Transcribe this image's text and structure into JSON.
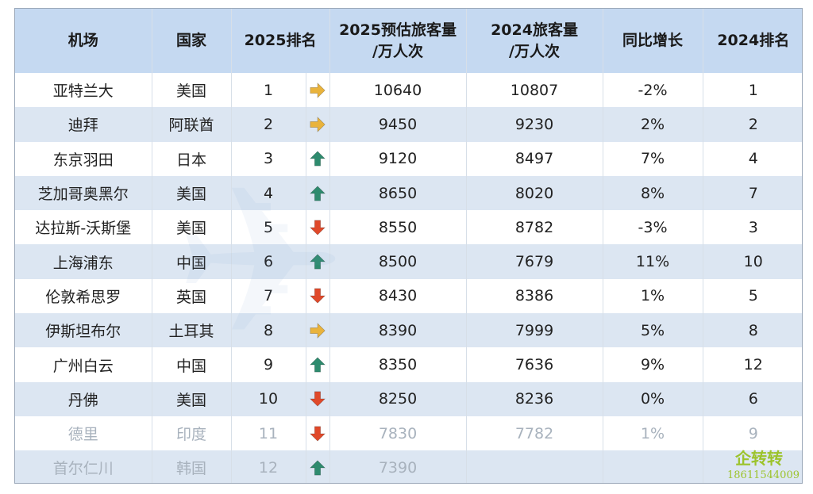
{
  "table": {
    "headers": [
      "机场",
      "国家",
      "2025排名",
      "2025预估旅客量\n/万人次",
      "2024旅客量\n/万人次",
      "同比增长",
      "2024排名"
    ],
    "rows": [
      {
        "airport": "亚特兰大",
        "country": "美国",
        "rank2025": "1",
        "trend": "flat",
        "est2025": "10640",
        "pax2024": "10807",
        "yoy": "-2%",
        "rank2024": "1"
      },
      {
        "airport": "迪拜",
        "country": "阿联酋",
        "rank2025": "2",
        "trend": "flat",
        "est2025": "9450",
        "pax2024": "9230",
        "yoy": "2%",
        "rank2024": "2"
      },
      {
        "airport": "东京羽田",
        "country": "日本",
        "rank2025": "3",
        "trend": "up",
        "est2025": "9120",
        "pax2024": "8497",
        "yoy": "7%",
        "rank2024": "4"
      },
      {
        "airport": "芝加哥奥黑尔",
        "country": "美国",
        "rank2025": "4",
        "trend": "up",
        "est2025": "8650",
        "pax2024": "8020",
        "yoy": "8%",
        "rank2024": "7"
      },
      {
        "airport": "达拉斯-沃斯堡",
        "country": "美国",
        "rank2025": "5",
        "trend": "down",
        "est2025": "8550",
        "pax2024": "8782",
        "yoy": "-3%",
        "rank2024": "3"
      },
      {
        "airport": "上海浦东",
        "country": "中国",
        "rank2025": "6",
        "trend": "up",
        "est2025": "8500",
        "pax2024": "7679",
        "yoy": "11%",
        "rank2024": "10"
      },
      {
        "airport": "伦敦希思罗",
        "country": "英国",
        "rank2025": "7",
        "trend": "down",
        "est2025": "8430",
        "pax2024": "8386",
        "yoy": "1%",
        "rank2024": "5"
      },
      {
        "airport": "伊斯坦布尔",
        "country": "土耳其",
        "rank2025": "8",
        "trend": "flat",
        "est2025": "8390",
        "pax2024": "7999",
        "yoy": "5%",
        "rank2024": "8"
      },
      {
        "airport": "广州白云",
        "country": "中国",
        "rank2025": "9",
        "trend": "up",
        "est2025": "8350",
        "pax2024": "7636",
        "yoy": "9%",
        "rank2024": "12"
      },
      {
        "airport": "丹佛",
        "country": "美国",
        "rank2025": "10",
        "trend": "down",
        "est2025": "8250",
        "pax2024": "8236",
        "yoy": "0%",
        "rank2024": "6"
      },
      {
        "airport": "德里",
        "country": "印度",
        "rank2025": "11",
        "trend": "down",
        "est2025": "7830",
        "pax2024": "7782",
        "yoy": "1%",
        "rank2024": "9",
        "faded": true
      },
      {
        "airport": "首尔仁川",
        "country": "韩国",
        "rank2025": "12",
        "trend": "up",
        "est2025": "7390",
        "pax2024": "",
        "yoy": "",
        "rank2024": "",
        "faded": true
      }
    ]
  },
  "trend_icons": {
    "up": "arrow-up-icon",
    "down": "arrow-down-icon",
    "flat": "arrow-right-icon"
  },
  "colors": {
    "header_bg": "#c5d9f1",
    "stripe_bg": "#dce6f2",
    "up": "#2e8b6e",
    "down": "#e0492a",
    "flat": "#e9b33c",
    "watermark": "#9cc32b"
  },
  "watermark": {
    "title": "企转转",
    "phone": "18611544009"
  }
}
